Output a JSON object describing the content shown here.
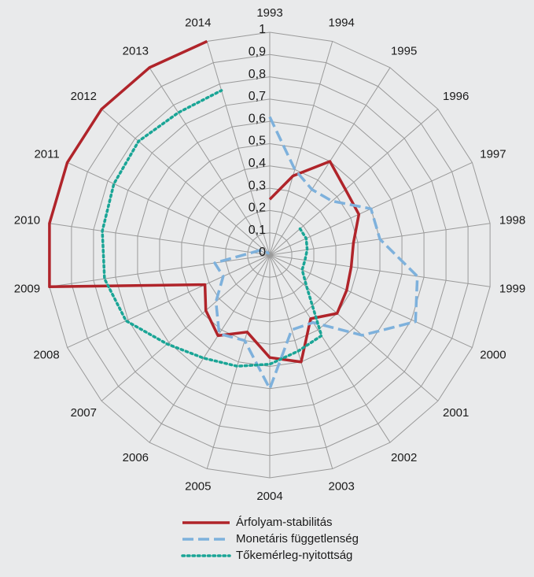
{
  "chart_data": {
    "type": "radar",
    "categories": [
      "1993",
      "1994",
      "1995",
      "1996",
      "1997",
      "1998",
      "1999",
      "2000",
      "2001",
      "2002",
      "2003",
      "2004",
      "2005",
      "2006",
      "2007",
      "2008",
      "2009",
      "2010",
      "2011",
      "2012",
      "2013",
      "2014"
    ],
    "ylim": [
      0,
      1
    ],
    "yticks": [
      0,
      {
        "value": 0.1,
        "label": "0,1"
      },
      {
        "value": 0.2,
        "label": "0,2"
      },
      {
        "value": 0.3,
        "label": "0,3"
      },
      {
        "value": 0.4,
        "label": "0,4"
      },
      {
        "value": 0.5,
        "label": "0,5"
      },
      {
        "value": 0.6,
        "label": "0,6"
      },
      {
        "value": 0.7,
        "label": "0,7"
      },
      {
        "value": 0.8,
        "label": "0,8"
      },
      {
        "value": 0.9,
        "label": "0,9"
      },
      1
    ],
    "grid": true,
    "legend": "bottom",
    "series": [
      {
        "name": "Árfolyam-stabilitás",
        "color": "#b0242a",
        "style": "solid",
        "values": [
          0.25,
          0.37,
          0.5,
          0.45,
          0.44,
          0.38,
          0.37,
          0.38,
          0.4,
          0.34,
          0.5,
          0.46,
          0.36,
          0.43,
          0.38,
          0.32,
          1,
          1,
          1,
          1,
          1,
          1
        ]
      },
      {
        "name": "Monetáris függetlenség",
        "color": "#7eb1dc",
        "style": "dashed",
        "values": [
          0.62,
          0.4,
          0.35,
          0.37,
          0.5,
          0.5,
          0.67,
          0.72,
          0.55,
          0.36,
          0.35,
          0.6,
          0.4,
          0.42,
          0.32,
          0.23,
          0.25,
          0.08,
          0.05,
          0.02,
          0.01,
          0.01
        ]
      },
      {
        "name": "Tőkemérleg-nyitottság",
        "color": "#1aa596",
        "style": "dotted",
        "values": [
          null,
          null,
          null,
          0.18,
          0.18,
          0.17,
          0.16,
          0.16,
          0.22,
          0.43,
          0.45,
          0.49,
          0.52,
          0.55,
          0.61,
          0.71,
          0.75,
          0.76,
          0.77,
          0.78,
          0.76,
          0.77
        ]
      }
    ]
  }
}
